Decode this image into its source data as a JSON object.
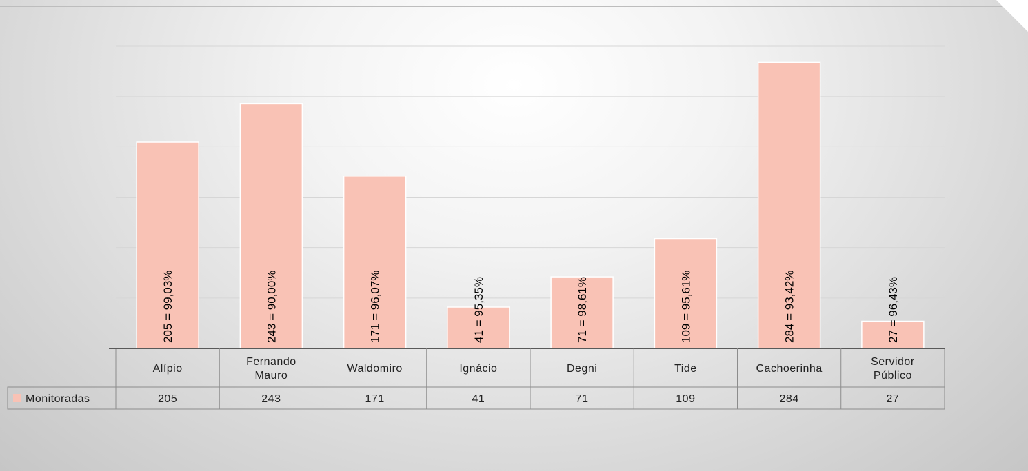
{
  "chart_data": {
    "type": "bar",
    "categories": [
      "Alípio",
      "Fernando Mauro",
      "Waldomiro",
      "Ignácio",
      "Degni",
      "Tide",
      "Cachoerinha",
      "Servidor Público"
    ],
    "category_lines": [
      [
        "Alípio"
      ],
      [
        "Fernando",
        "Mauro"
      ],
      [
        "Waldomiro"
      ],
      [
        "Ignácio"
      ],
      [
        "Degni"
      ],
      [
        "Tide"
      ],
      [
        "Cachoerinha"
      ],
      [
        "Servidor",
        "Público"
      ]
    ],
    "series": [
      {
        "name": "Monitoradas",
        "values": [
          205,
          243,
          171,
          41,
          71,
          109,
          284,
          27
        ],
        "table_values": [
          "205",
          "243",
          "171",
          "41",
          "71",
          "109",
          "284",
          "27"
        ],
        "data_labels": [
          "205 = 99,03%",
          "243 = 90,00%",
          "171 = 96,07%",
          "41 = 95,35%",
          "71 = 98,61%",
          "109 = 95,61%",
          "284 = 93,42%",
          "27 = 96,43%"
        ],
        "color": "#f9c2b5"
      }
    ],
    "ylim": [
      0,
      300
    ],
    "grid": true,
    "legend": "data-table",
    "title": "",
    "xlabel": "",
    "ylabel": ""
  }
}
